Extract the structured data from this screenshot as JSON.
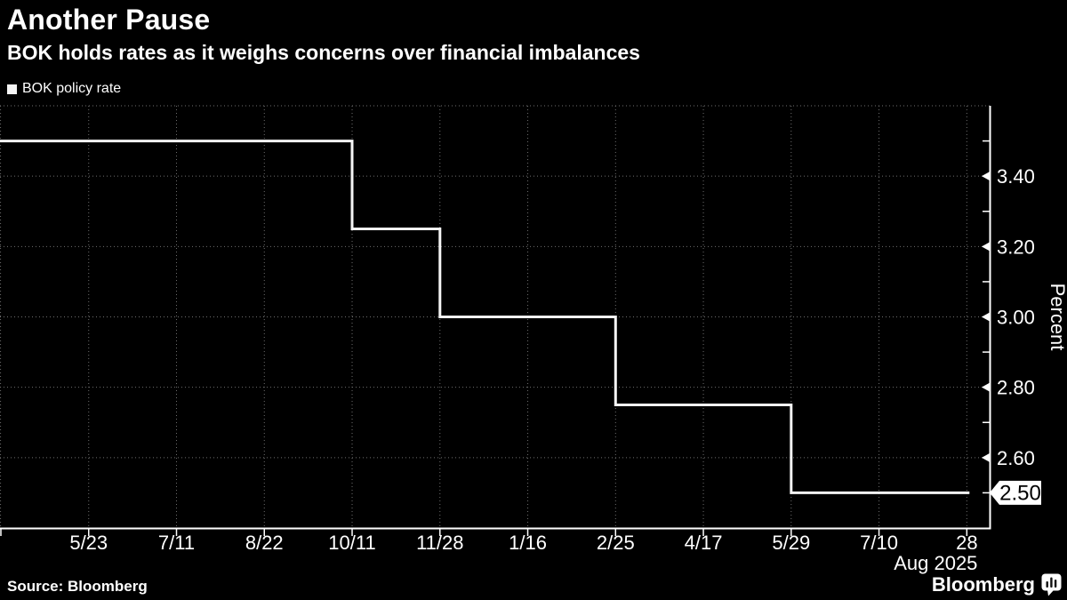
{
  "header": {
    "title": "Another Pause",
    "subtitle": "BOK holds rates as it weighs concerns over financial imbalances"
  },
  "footer": {
    "source": "Source: Bloomberg",
    "logo_text": "Bloomberg"
  },
  "colors": {
    "background": "#000000",
    "text": "#ffffff",
    "grid": "#6f6f6f",
    "axis": "#ffffff",
    "line": "#f5f5f5",
    "tag_bg": "#ffffff",
    "tag_text": "#000000"
  },
  "chart_data": {
    "type": "line",
    "step": true,
    "title": "Another Pause",
    "subtitle": "BOK holds rates as it weighs concerns over financial imbalances",
    "ylabel": "Percent",
    "grid": true,
    "legend_position": "top-left",
    "y_domain": [
      2.4,
      3.6
    ],
    "x_domain": [
      -1.01,
      10.26
    ],
    "x_ticks": [
      {
        "index": 0,
        "label": "5/23"
      },
      {
        "index": 1,
        "label": "7/11"
      },
      {
        "index": 2,
        "label": "8/22"
      },
      {
        "index": 3,
        "label": "10/11"
      },
      {
        "index": 4,
        "label": "11/28"
      },
      {
        "index": 5,
        "label": "1/16"
      },
      {
        "index": 6,
        "label": "2/25"
      },
      {
        "index": 7,
        "label": "4/17"
      },
      {
        "index": 8,
        "label": "5/29"
      },
      {
        "index": 9,
        "label": "7/10"
      },
      {
        "index": 10,
        "label": "28"
      }
    ],
    "x_axis_note": "Aug 2025",
    "x_edge_gridline": -1.01,
    "y_gridlines": [
      3.6,
      3.4,
      3.2,
      3.0,
      2.8,
      2.6
    ],
    "y_major_ticks": [
      {
        "value": 3.4,
        "label": "3.40"
      },
      {
        "value": 3.2,
        "label": "3.20"
      },
      {
        "value": 3.0,
        "label": "3.00"
      },
      {
        "value": 2.8,
        "label": "2.80"
      },
      {
        "value": 2.6,
        "label": "2.60"
      }
    ],
    "y_minor_ticks": [
      3.5,
      3.3,
      3.1,
      2.9,
      2.7,
      2.5
    ],
    "last_value_tag": {
      "value": 2.5,
      "label": "2.50"
    },
    "series": [
      {
        "name": "BOK policy rate",
        "color": "#f5f5f5",
        "points": [
          [
            -1.01,
            3.5
          ],
          [
            3,
            3.5
          ],
          [
            3,
            3.25
          ],
          [
            4,
            3.25
          ],
          [
            4,
            3.0
          ],
          [
            6,
            3.0
          ],
          [
            6,
            2.75
          ],
          [
            8,
            2.75
          ],
          [
            8,
            2.5
          ],
          [
            10.03,
            2.5
          ]
        ]
      }
    ],
    "initial_rate": 3.5,
    "rate_changes": [
      {
        "date": "10/11",
        "rate": 3.25
      },
      {
        "date": "11/28",
        "rate": 3.0
      },
      {
        "date": "2/25",
        "rate": 2.75
      },
      {
        "date": "5/29",
        "rate": 2.5
      }
    ]
  }
}
